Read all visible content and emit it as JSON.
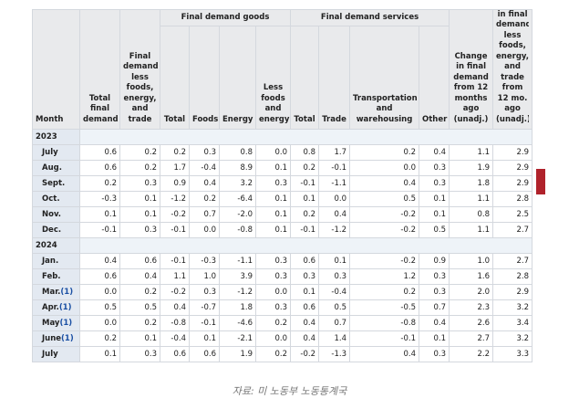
{
  "table": {
    "headers": {
      "month": "Month",
      "total": "Total final demand",
      "less": "Final demand less foods, energy, and trade",
      "goods": {
        "label": "Final demand goods",
        "columns": [
          "Total",
          "Foods",
          "Energy",
          "Less foods and energy"
        ]
      },
      "services": {
        "label": "Final demand services",
        "columns": [
          "Total",
          "Trade",
          "Transportation and warehousing",
          "Other"
        ]
      },
      "change": "Change in final demand from 12 months ago (unadj.)",
      "change_core": "in final demand less foods, energy, and trade from 12 mo. ago (unadj.)"
    },
    "sections": [
      {
        "year": "2023",
        "rows": [
          {
            "month": "July",
            "values": [
              "0.6",
              "0.2",
              "0.2",
              "0.3",
              "0.8",
              "0.0",
              "0.8",
              "1.7",
              "0.2",
              "0.4",
              "1.1",
              "2.9"
            ]
          },
          {
            "month": "Aug.",
            "values": [
              "0.6",
              "0.2",
              "1.7",
              "-0.4",
              "8.9",
              "0.1",
              "0.2",
              "-0.1",
              "0.0",
              "0.3",
              "1.9",
              "2.9"
            ]
          },
          {
            "month": "Sept.",
            "values": [
              "0.2",
              "0.3",
              "0.9",
              "0.4",
              "3.2",
              "0.3",
              "-0.1",
              "-1.1",
              "0.4",
              "0.3",
              "1.8",
              "2.9"
            ]
          },
          {
            "month": "Oct.",
            "values": [
              "-0.3",
              "0.1",
              "-1.2",
              "0.2",
              "-6.4",
              "0.1",
              "0.1",
              "0.0",
              "0.5",
              "0.1",
              "1.1",
              "2.8"
            ]
          },
          {
            "month": "Nov.",
            "values": [
              "0.1",
              "0.1",
              "-0.2",
              "0.7",
              "-2.0",
              "0.1",
              "0.2",
              "0.4",
              "-0.2",
              "0.1",
              "0.8",
              "2.5"
            ]
          },
          {
            "month": "Dec.",
            "values": [
              "-0.1",
              "0.3",
              "-0.1",
              "0.0",
              "-0.8",
              "0.1",
              "-0.1",
              "-1.2",
              "-0.2",
              "0.5",
              "1.1",
              "2.7"
            ]
          }
        ]
      },
      {
        "year": "2024",
        "rows": [
          {
            "month": "Jan.",
            "values": [
              "0.4",
              "0.6",
              "-0.1",
              "-0.3",
              "-1.1",
              "0.3",
              "0.6",
              "0.1",
              "-0.2",
              "0.9",
              "1.0",
              "2.7"
            ]
          },
          {
            "month": "Feb.",
            "values": [
              "0.6",
              "0.4",
              "1.1",
              "1.0",
              "3.9",
              "0.3",
              "0.3",
              "0.3",
              "1.2",
              "0.3",
              "1.6",
              "2.8"
            ]
          },
          {
            "month": "Mar.",
            "note": "(1)",
            "values": [
              "0.0",
              "0.2",
              "-0.2",
              "0.3",
              "-1.2",
              "0.0",
              "0.1",
              "-0.4",
              "0.2",
              "0.3",
              "2.0",
              "2.9"
            ]
          },
          {
            "month": "Apr.",
            "note": "(1)",
            "values": [
              "0.5",
              "0.5",
              "0.4",
              "-0.7",
              "1.8",
              "0.3",
              "0.6",
              "0.5",
              "-0.5",
              "0.7",
              "2.3",
              "3.2"
            ]
          },
          {
            "month": "May",
            "note": "(1)",
            "values": [
              "0.0",
              "0.2",
              "-0.8",
              "-0.1",
              "-4.6",
              "0.2",
              "0.4",
              "0.7",
              "-0.8",
              "0.4",
              "2.6",
              "3.4"
            ]
          },
          {
            "month": "June",
            "note": "(1)",
            "values": [
              "0.2",
              "0.1",
              "-0.4",
              "0.1",
              "-2.1",
              "0.0",
              "0.4",
              "1.4",
              "-0.1",
              "0.1",
              "2.7",
              "3.2"
            ]
          },
          {
            "month": "July",
            "values": [
              "0.1",
              "0.3",
              "0.6",
              "0.6",
              "1.9",
              "0.2",
              "-0.2",
              "-1.3",
              "0.4",
              "0.3",
              "2.2",
              "3.3"
            ]
          }
        ]
      }
    ]
  },
  "caption": "자료: 미 노동부 노동통계국"
}
